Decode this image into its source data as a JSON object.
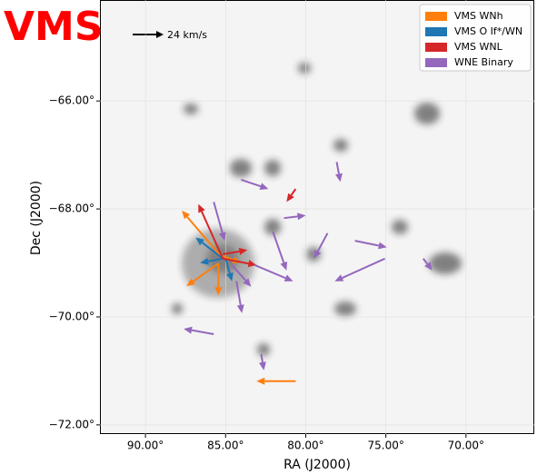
{
  "chart_data": {
    "type": "quiver",
    "title": "VMS",
    "xlabel": "RA (J2000)",
    "ylabel": "Dec (J2000)",
    "reference_label": "24 km/s",
    "xlim": [
      92.84,
      65.74
    ],
    "ylim": [
      -72.17,
      -64.13
    ],
    "xticks": [
      {
        "value": 90,
        "label": "90.00°"
      },
      {
        "value": 85,
        "label": "85.00°"
      },
      {
        "value": 80,
        "label": "80.00°"
      },
      {
        "value": 75,
        "label": "75.00°"
      },
      {
        "value": 70,
        "label": "70.00°"
      }
    ],
    "yticks": [
      {
        "value": -66,
        "label": "−66.00°"
      },
      {
        "value": -68,
        "label": "−68.00°"
      },
      {
        "value": -70,
        "label": "−70.00°"
      },
      {
        "value": -72,
        "label": "−72.00°"
      }
    ],
    "legend": "upper right",
    "series": [
      {
        "name": "VMS WNh",
        "color": "#ff7f0e",
        "x": [
          85.17,
          85.45,
          85.45,
          80.63,
          85.17
        ],
        "y": [
          -68.92,
          -69.01,
          -69.01,
          -71.19,
          -68.87
        ],
        "u": [
          2.56,
          1.99,
          0,
          2.44,
          -1.14
        ],
        "v": [
          0.89,
          -0.42,
          -0.59,
          0,
          -0.13
        ]
      },
      {
        "name": "VMS O If*/WN",
        "color": "#1f77b4",
        "x": [
          85.17,
          85.0,
          85.17
        ],
        "y": [
          -68.92,
          -68.92,
          -68.92
        ],
        "u": [
          1.42,
          -0.4,
          1.7
        ],
        "v": [
          -0.08,
          -0.42,
          0.39
        ]
      },
      {
        "name": "VMS WNL",
        "color": "#d62728",
        "x": [
          85.17,
          85.17,
          80.63,
          85.17
        ],
        "y": [
          -68.92,
          -68.92,
          -67.63,
          -68.84
        ],
        "u": [
          1.53,
          -2.1,
          0.57,
          -1.53
        ],
        "v": [
          1.01,
          -0.12,
          -0.24,
          0.08
        ]
      },
      {
        "name": "WNE Binary",
        "color": "#9467bd",
        "x": [
          84.03,
          78.07,
          81.36,
          82.05,
          78.64,
          76.93,
          75.06,
          83.18,
          84.32,
          85.74,
          85.74,
          82.78,
          72.67,
          84.6
        ],
        "y": [
          -67.46,
          -67.13,
          -68.17,
          -68.42,
          -68.45,
          -68.59,
          -68.92,
          -69.04,
          -69.34,
          -67.87,
          -70.32,
          -70.69,
          -68.92,
          -69.04
        ],
        "u": [
          -1.7,
          -0.23,
          -1.36,
          -0.85,
          0.85,
          -1.99,
          3.13,
          -2.39,
          -0.34,
          -0.68,
          1.88,
          -0.17,
          -0.57,
          -1.19
        ],
        "v": [
          -0.17,
          -0.37,
          0.05,
          -0.72,
          -0.47,
          -0.12,
          -0.42,
          -0.3,
          -0.59,
          -0.72,
          0.1,
          -0.3,
          -0.22,
          -0.4
        ]
      }
    ]
  }
}
